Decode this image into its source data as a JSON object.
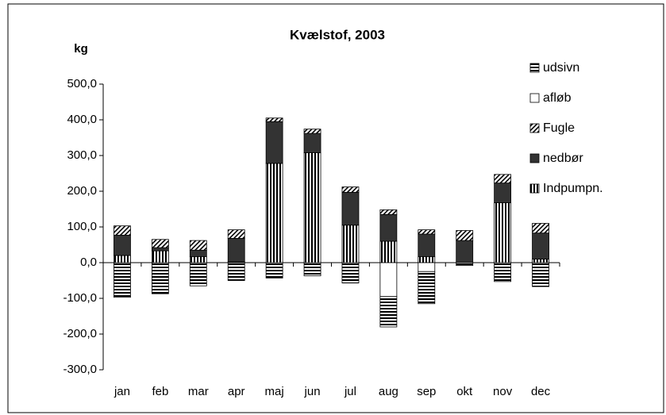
{
  "chart_data": {
    "type": "stacked-bar",
    "title": "Kvælstof, 2003",
    "y_label": "kg",
    "categories": [
      "jan",
      "feb",
      "mar",
      "apr",
      "maj",
      "jun",
      "jul",
      "aug",
      "sep",
      "okt",
      "nov",
      "dec"
    ],
    "series": [
      {
        "name": "Indpumpn.",
        "color": "#000000",
        "pattern": "vertical",
        "values": [
          20,
          33,
          17,
          2,
          278,
          308,
          105,
          60,
          17,
          0,
          168,
          10
        ]
      },
      {
        "name": "nedbør",
        "color": "#333333",
        "pattern": "solid",
        "values": [
          57,
          9,
          18,
          66,
          117,
          54,
          92,
          75,
          63,
          62,
          55,
          73
        ]
      },
      {
        "name": "Fugle",
        "color": "#000000",
        "pattern": "diagonal",
        "values": [
          26,
          23,
          27,
          24,
          10,
          12,
          15,
          13,
          12,
          28,
          24,
          27
        ]
      },
      {
        "name": "afløb",
        "color": "#ffffff",
        "pattern": "solid",
        "values": [
          0,
          0,
          0,
          0,
          0,
          0,
          0,
          -95,
          -25,
          0,
          0,
          0
        ]
      },
      {
        "name": "udsivn",
        "color": "#000000",
        "pattern": "horizontal",
        "values": [
          -97,
          -87,
          -65,
          -50,
          -43,
          -37,
          -57,
          -85,
          -90,
          -8,
          -53,
          -67
        ]
      }
    ],
    "ylim": [
      -300,
      500
    ],
    "yticks": [
      {
        "value": -300,
        "label": "-300,0"
      },
      {
        "value": -200,
        "label": "-200,0"
      },
      {
        "value": -100,
        "label": "-100,0"
      },
      {
        "value": 0,
        "label": "0,0"
      },
      {
        "value": 100,
        "label": "100,0"
      },
      {
        "value": 200,
        "label": "200,0"
      },
      {
        "value": 300,
        "label": "300,0"
      },
      {
        "value": 400,
        "label": "400,0"
      },
      {
        "value": 500,
        "label": "500,0"
      }
    ],
    "legend_position": "right",
    "grid": false
  }
}
